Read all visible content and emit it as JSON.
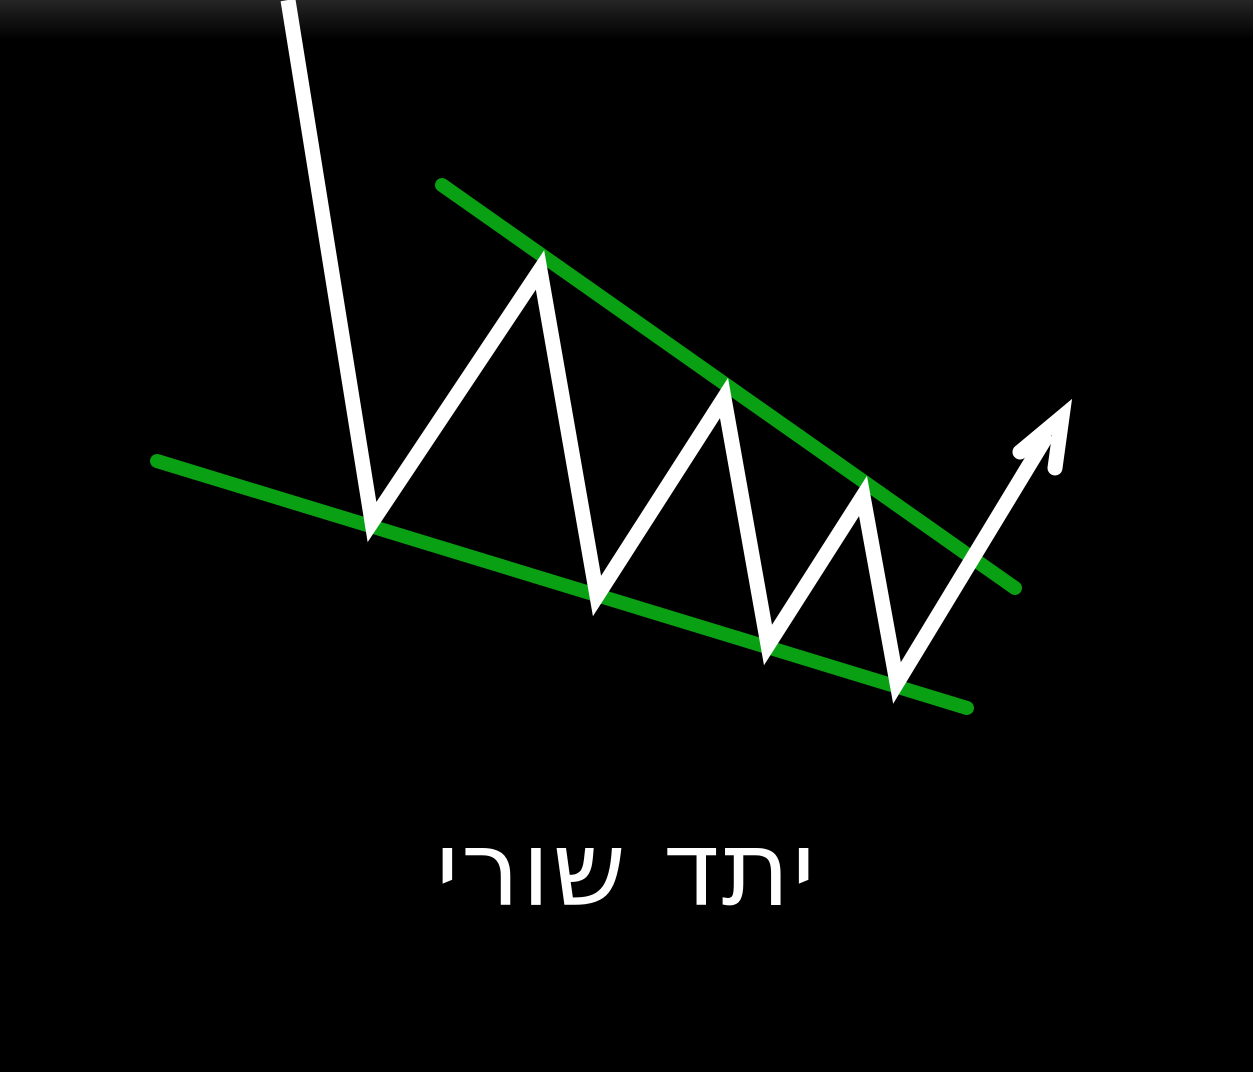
{
  "caption": "יתד שורי",
  "colors": {
    "background": "#000000",
    "price_line": "#ffffff",
    "trendlines": "#0aa013",
    "caption_text": "#ffffff"
  },
  "icons": {
    "breakout_arrow": "arrow-up-right-icon"
  }
}
